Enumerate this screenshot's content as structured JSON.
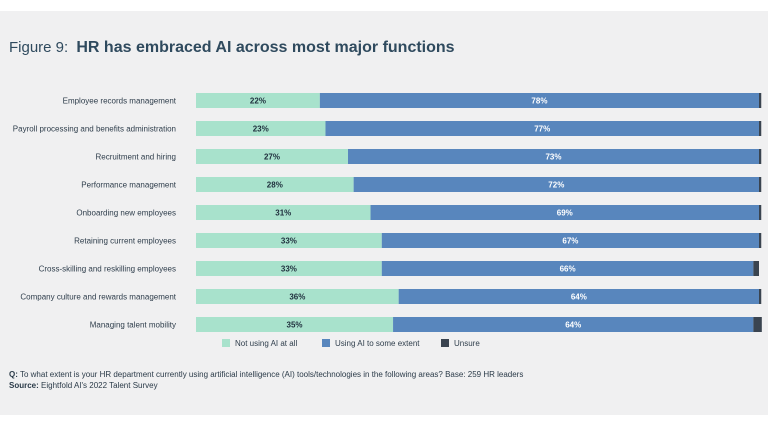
{
  "title_prefix": "Figure 9:",
  "footer": {
    "question_label": "Q:",
    "question": "To what extent is your HR department currently using artificial intelligence (AI) tools/technologies in the following areas? Base: 259 HR leaders",
    "source_label": "Source:",
    "source": "Eightfold AI's 2022 Talent Survey"
  },
  "colors": {
    "not_using": "#a8e2cc",
    "using": "#5886bd",
    "unsure": "#3a4450",
    "label_text": "#2f3e4c",
    "value_text": "#1e2e3c",
    "value_text_light": "#ffffff"
  },
  "chart_data": {
    "type": "bar",
    "orientation": "horizontal",
    "stacked": true,
    "title": "HR has embraced AI across most major functions",
    "xlabel": "",
    "ylabel": "",
    "xlim": [
      0,
      100
    ],
    "legend_position": "bottom",
    "categories": [
      "Employee records management",
      "Payroll processing and benefits administration",
      "Recruitment and hiring",
      "Performance management",
      "Onboarding new employees",
      "Retaining current employees",
      "Cross-skilling and reskilling employees",
      "Company culture and rewards management",
      "Managing talent mobility"
    ],
    "series": [
      {
        "name": "Not using AI at all",
        "values": [
          22,
          23,
          27,
          28,
          31,
          33,
          33,
          36,
          35
        ],
        "labels": [
          "22%",
          "23%",
          "27%",
          "28%",
          "31%",
          "33%",
          "33%",
          "36%",
          "35%"
        ]
      },
      {
        "name": "Using AI to some extent",
        "values": [
          78,
          77,
          73,
          72,
          69,
          67,
          66,
          64,
          64
        ],
        "labels": [
          "78%",
          "77%",
          "73%",
          "72%",
          "69%",
          "67%",
          "66%",
          "64%",
          "64%"
        ]
      },
      {
        "name": "Unsure",
        "values": [
          0.4,
          0.4,
          0.4,
          0.4,
          0.4,
          0.4,
          1,
          0.4,
          1.5
        ],
        "labels": [
          "",
          "",
          "",
          "",
          "",
          "",
          "",
          "",
          ""
        ]
      }
    ]
  }
}
